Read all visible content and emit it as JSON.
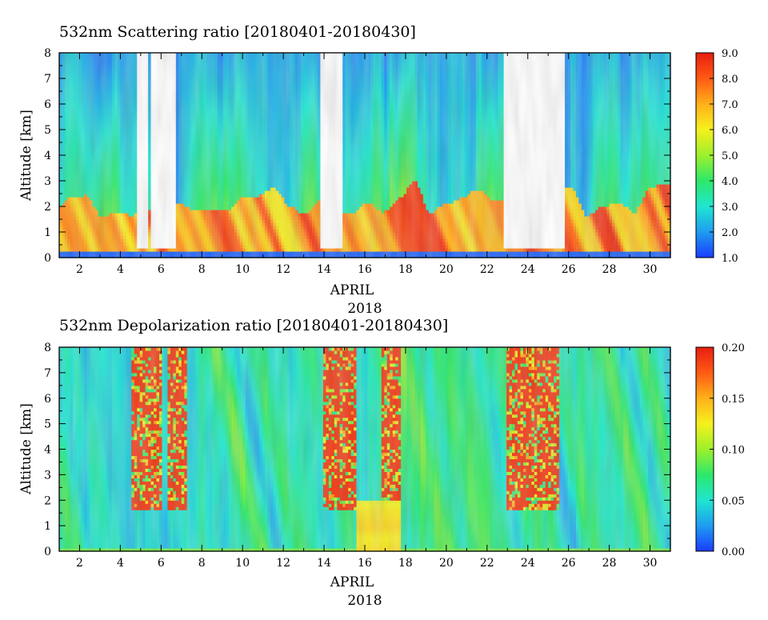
{
  "chart_data": [
    {
      "type": "heatmap",
      "title": "532nm Scattering ratio [20180401-20180430]",
      "xlabel": "APRIL",
      "xlabel2": "2018",
      "ylabel": "Altitude [km]",
      "xlim": [
        1,
        31
      ],
      "ylim": [
        0,
        8
      ],
      "x_ticks": [
        "2",
        "4",
        "6",
        "8",
        "10",
        "12",
        "14",
        "16",
        "18",
        "20",
        "22",
        "24",
        "26",
        "28",
        "30"
      ],
      "y_ticks": [
        "0",
        "1",
        "2",
        "3",
        "4",
        "5",
        "6",
        "7",
        "8"
      ],
      "colorbar": {
        "min": 1.0,
        "max": 9.0,
        "ticks": [
          "1.0",
          "2.0",
          "3.0",
          "4.0",
          "5.0",
          "6.0",
          "7.0",
          "8.0",
          "9.0"
        ],
        "colormap": [
          "#1a3cff",
          "#1f9cf0",
          "#1fe6d0",
          "#2de86a",
          "#9df02c",
          "#f6f01e",
          "#ffb01a",
          "#ff5a14",
          "#e81e10"
        ]
      },
      "missing_data_color": "#ffffff",
      "data_gaps_days": [
        [
          4.8,
          5.4
        ],
        [
          5.5,
          6.7
        ],
        [
          13.8,
          14.9
        ],
        [
          22.8,
          25.8
        ]
      ],
      "notes_summary": "Low scattering ratio (~1-2) above 3 km on most days; enhanced values (7-9) in boundary layer below ~2 km"
    },
    {
      "type": "heatmap",
      "title": "532nm Depolarization ratio [20180401-20180430]",
      "xlabel": "APRIL",
      "xlabel2": "2018",
      "ylabel": "Altitude [km]",
      "xlim": [
        1,
        31
      ],
      "ylim": [
        0,
        8
      ],
      "x_ticks": [
        "2",
        "4",
        "6",
        "8",
        "10",
        "12",
        "14",
        "16",
        "18",
        "20",
        "22",
        "24",
        "26",
        "28",
        "30"
      ],
      "y_ticks": [
        "0",
        "1",
        "2",
        "3",
        "4",
        "5",
        "6",
        "7",
        "8"
      ],
      "colorbar": {
        "min": 0.0,
        "max": 0.2,
        "ticks": [
          "0.00",
          "0.05",
          "0.10",
          "0.15",
          "0.20"
        ],
        "colormap": [
          "#1a3cff",
          "#1f9cf0",
          "#1fe6d0",
          "#2de86a",
          "#9df02c",
          "#f6f01e",
          "#ffb01a",
          "#ff5a14",
          "#e81e10"
        ]
      },
      "high_depol_bands_days": [
        [
          4.5,
          6.0
        ],
        [
          6.3,
          7.3
        ],
        [
          13.9,
          15.6
        ],
        [
          16.8,
          17.8
        ],
        [
          22.9,
          25.6
        ]
      ],
      "notes_summary": "Depolarization mostly 0.03-0.08; noisy high values (~0.2) aloft where signal is weak; ~0.12-0.15 near 16-17 April below 2 km"
    }
  ]
}
